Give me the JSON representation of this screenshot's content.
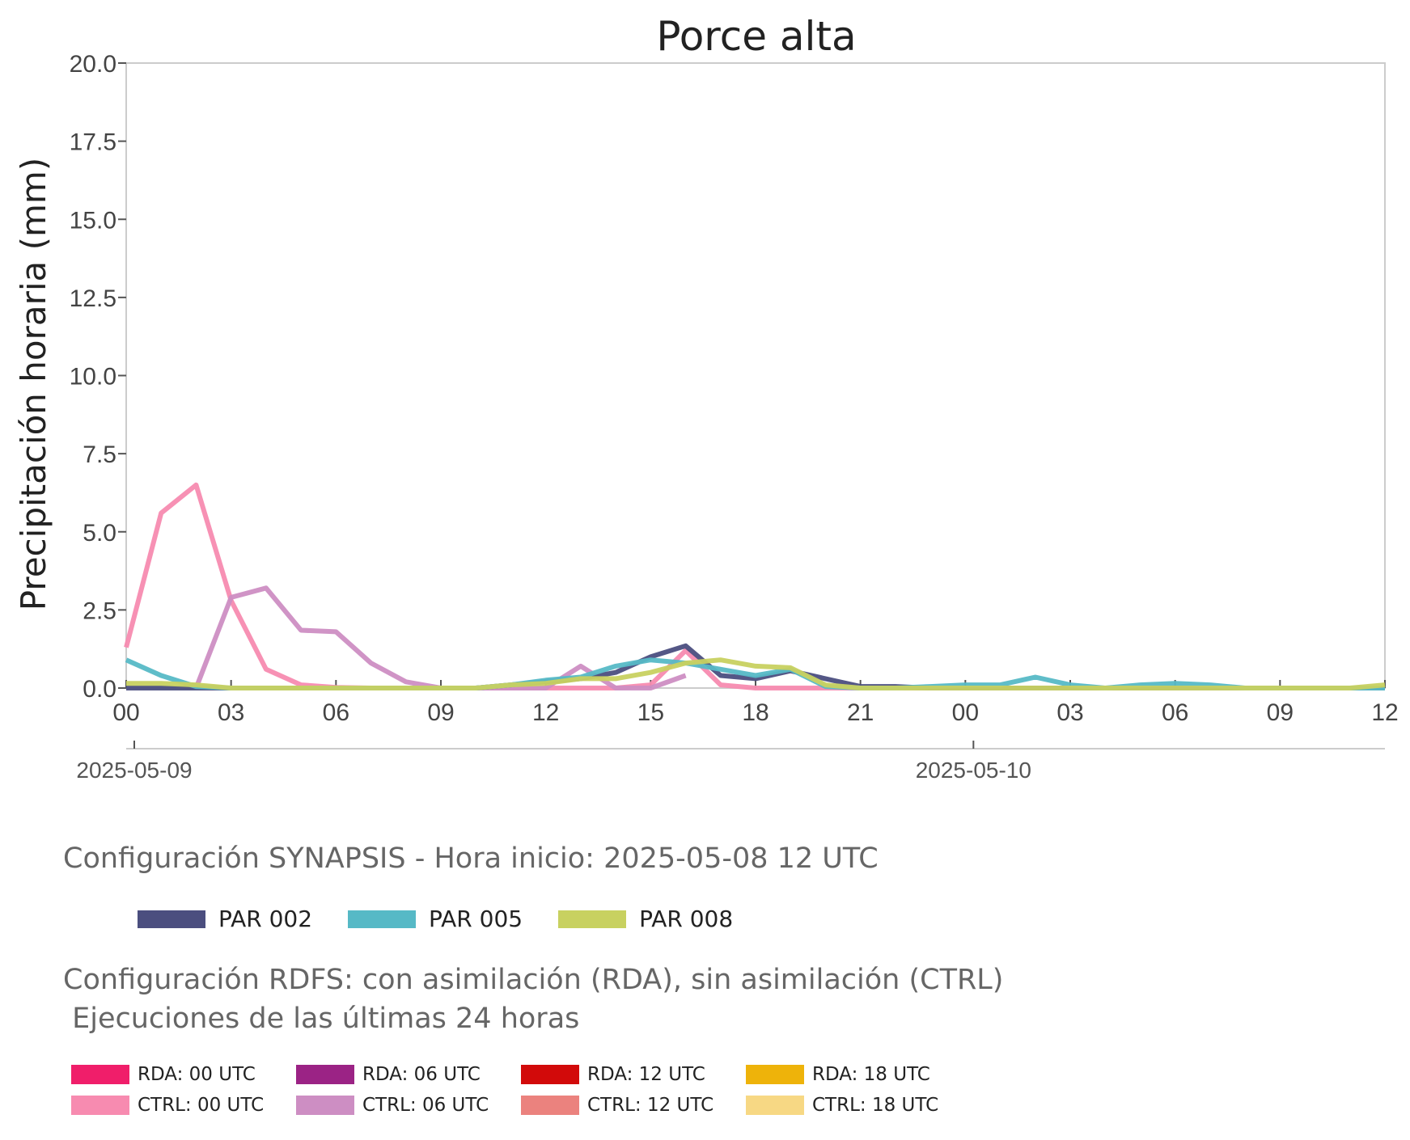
{
  "chart_data": {
    "type": "line",
    "title": "Porce alta",
    "ylabel": "Precipitación horaria (mm)",
    "xlabel": "",
    "ylim": [
      0,
      20
    ],
    "xlim": [
      0,
      36
    ],
    "yticks": [
      "0.0",
      "2.5",
      "5.0",
      "7.5",
      "10.0",
      "12.5",
      "15.0",
      "17.5",
      "20.0"
    ],
    "xticks": [
      "00",
      "03",
      "06",
      "09",
      "12",
      "15",
      "18",
      "21",
      "00",
      "03",
      "06",
      "09",
      "12"
    ],
    "date_labels": [
      {
        "label": "2025-05-09",
        "at_hour": 0
      },
      {
        "label": "2025-05-10",
        "at_hour": 24
      }
    ],
    "grid": false,
    "series": [
      {
        "name": "CTRL: 00 UTC",
        "color": "#f78bb0",
        "x": [
          0,
          1,
          2,
          3,
          4,
          5,
          6,
          7,
          8,
          9,
          10,
          11,
          12,
          13,
          14,
          15,
          16,
          17,
          18,
          19,
          20,
          21,
          22,
          23,
          24,
          25,
          26,
          27,
          28,
          29,
          30,
          31,
          32,
          33,
          34,
          35,
          36
        ],
        "y": [
          1.3,
          5.6,
          6.5,
          2.8,
          0.6,
          0.1,
          0.02,
          0,
          0,
          0,
          0,
          0,
          0,
          0,
          0,
          0.1,
          1.2,
          0.1,
          0,
          0,
          0,
          0,
          0,
          0,
          0,
          0,
          0,
          0,
          0,
          0,
          0,
          0,
          0,
          0,
          0,
          0,
          0
        ]
      },
      {
        "name": "CTRL: 06 UTC",
        "color": "#cd8ec3",
        "x": [
          2,
          3,
          4,
          5,
          6,
          7,
          8,
          9,
          10,
          11,
          12,
          13,
          14,
          15,
          16
        ],
        "y": [
          0,
          2.9,
          3.2,
          1.85,
          1.8,
          0.8,
          0.2,
          0,
          0,
          0,
          0,
          0.7,
          0,
          0,
          0.4
        ]
      },
      {
        "name": "PAR 002",
        "color": "#4b4e7f",
        "x": [
          0,
          1,
          2,
          3,
          4,
          5,
          6,
          7,
          8,
          9,
          10,
          11,
          12,
          13,
          14,
          15,
          16,
          17,
          18,
          19,
          20,
          21,
          22,
          23,
          24,
          25,
          26,
          27,
          28,
          29,
          30,
          31,
          32,
          33,
          34,
          35,
          36
        ],
        "y": [
          0,
          0,
          0,
          0,
          0,
          0,
          0,
          0,
          0,
          0,
          0,
          0.1,
          0.2,
          0.3,
          0.5,
          1.0,
          1.35,
          0.4,
          0.3,
          0.55,
          0.3,
          0.05,
          0.05,
          0,
          0,
          0,
          0,
          0,
          0,
          0,
          0,
          0,
          0,
          0,
          0,
          0,
          0
        ]
      },
      {
        "name": "PAR 005",
        "color": "#56b9c6",
        "x": [
          0,
          1,
          2,
          3,
          4,
          5,
          6,
          7,
          8,
          9,
          10,
          11,
          12,
          13,
          14,
          15,
          16,
          17,
          18,
          19,
          20,
          21,
          22,
          23,
          24,
          25,
          26,
          27,
          28,
          29,
          30,
          31,
          32,
          33,
          34,
          35,
          36
        ],
        "y": [
          0.9,
          0.4,
          0.05,
          0,
          0,
          0,
          0,
          0,
          0,
          0,
          0,
          0.1,
          0.25,
          0.35,
          0.7,
          0.9,
          0.8,
          0.6,
          0.4,
          0.6,
          0.05,
          0,
          0,
          0.05,
          0.1,
          0.1,
          0.35,
          0.1,
          0,
          0.1,
          0.15,
          0.1,
          0,
          0,
          0,
          0,
          0
        ]
      },
      {
        "name": "PAR 008",
        "color": "#c8d160",
        "x": [
          0,
          1,
          2,
          3,
          4,
          5,
          6,
          7,
          8,
          9,
          10,
          11,
          12,
          13,
          14,
          15,
          16,
          17,
          18,
          19,
          20,
          21,
          22,
          23,
          24,
          25,
          26,
          27,
          28,
          29,
          30,
          31,
          32,
          33,
          34,
          35,
          36
        ],
        "y": [
          0.15,
          0.15,
          0.1,
          0,
          0,
          0,
          0,
          0,
          0,
          0,
          0,
          0.1,
          0.15,
          0.3,
          0.3,
          0.5,
          0.8,
          0.9,
          0.7,
          0.65,
          0.1,
          0,
          0,
          0,
          0,
          0,
          0,
          0,
          0,
          0,
          0,
          0,
          0,
          0,
          0,
          0,
          0.1
        ]
      }
    ]
  },
  "legend_synapsis": {
    "title": "Configuración SYNAPSIS - Hora inicio: 2025-05-08 12 UTC",
    "items": [
      {
        "label": "PAR 002",
        "color": "#4b4e7f"
      },
      {
        "label": "PAR 005",
        "color": "#56b9c6"
      },
      {
        "label": "PAR 008",
        "color": "#c8d160"
      }
    ]
  },
  "legend_rdfs": {
    "title": "Configuración RDFS: con asimilación (RDA), sin asimilación (CTRL)\n Ejecuciones de las últimas 24 horas",
    "items": [
      {
        "label": "RDA: 00 UTC",
        "color": "#f01e6a"
      },
      {
        "label": "RDA: 06 UTC",
        "color": "#9b2385"
      },
      {
        "label": "RDA: 12 UTC",
        "color": "#d20a0a"
      },
      {
        "label": "RDA: 18 UTC",
        "color": "#eeb30a"
      },
      {
        "label": "CTRL: 00 UTC",
        "color": "#f78bb0"
      },
      {
        "label": "CTRL: 06 UTC",
        "color": "#cd8ec3"
      },
      {
        "label": "CTRL: 12 UTC",
        "color": "#eb827e"
      },
      {
        "label": "CTRL: 18 UTC",
        "color": "#f7d884"
      }
    ]
  }
}
